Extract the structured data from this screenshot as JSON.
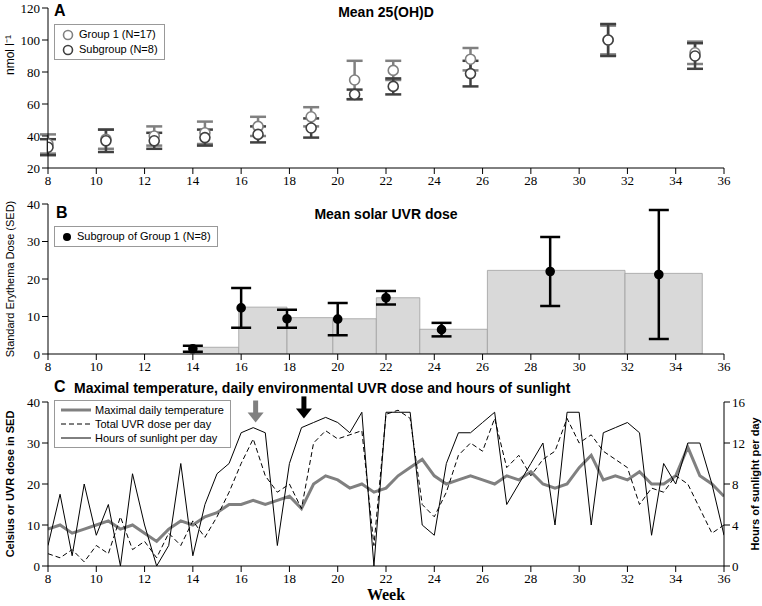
{
  "chart_data": [
    {
      "type": "scatter",
      "panel_label": "A",
      "title": "Mean 25(OH)D",
      "y_label": "nmol l⁻¹",
      "x": [
        8,
        10.4,
        12.4,
        14.5,
        16.7,
        18.9,
        20.7,
        22.3,
        25.5,
        31.2,
        34.8
      ],
      "xlim": [
        8,
        36
      ],
      "xticks": [
        8,
        10,
        12,
        14,
        16,
        18,
        20,
        22,
        24,
        26,
        28,
        30,
        32,
        34,
        36
      ],
      "ylim": [
        20,
        120
      ],
      "yticks": [
        20,
        40,
        60,
        80,
        100,
        120
      ],
      "legend": "upper left",
      "series": [
        {
          "name": "Group 1 (N=17)",
          "color": "#808080",
          "marker": "open_circle",
          "values": [
            35,
            38,
            40,
            42,
            46,
            52,
            75,
            81,
            88,
            100,
            92
          ],
          "error": [
            6,
            6,
            6,
            7,
            6,
            6,
            12,
            6,
            7,
            9,
            7
          ]
        },
        {
          "name": "Subgroup (N=8)",
          "color": "#404040",
          "marker": "open_circle",
          "values": [
            33,
            37,
            37,
            39,
            41,
            45,
            66,
            71,
            79,
            100,
            90
          ],
          "error": [
            5,
            7,
            5,
            5,
            5,
            6,
            3,
            5,
            8,
            10,
            8
          ]
        }
      ]
    },
    {
      "type": "histogram",
      "panel_label": "B",
      "title": "Mean solar UVR dose",
      "y_label": "Standard Erythema Dose (SED)",
      "bins": [
        13.9,
        15.9,
        17.9,
        19.8,
        21.6,
        23.4,
        26.2,
        31.9,
        35.1
      ],
      "values": [
        1.8,
        12.5,
        9.7,
        9.4,
        15,
        6.6,
        22.3,
        21.5
      ],
      "color": "#d9d9d9",
      "xlim": [
        8,
        36
      ],
      "xticks": [
        8,
        10,
        12,
        14,
        16,
        18,
        20,
        22,
        24,
        26,
        28,
        30,
        32,
        34,
        36
      ],
      "ylim": [
        0,
        40
      ],
      "yticks": [
        0,
        10,
        20,
        30,
        40
      ],
      "legend": "upper left",
      "series": [
        {
          "name": "Subgroup of Group 1 (N=8)",
          "type": "scatter",
          "color": "#000000",
          "marker": "filled_circle",
          "x": [
            14,
            16,
            17.9,
            20,
            22,
            24.3,
            28.8,
            33.3
          ],
          "values": [
            1.4,
            12.3,
            9.4,
            9.3,
            15,
            6.5,
            22,
            21.2
          ],
          "error": [
            0.8,
            5.3,
            2.4,
            4.3,
            1.8,
            1.8,
            9.2,
            17.2
          ]
        }
      ]
    },
    {
      "type": "line",
      "panel_label": "C",
      "title": "Maximal temperature, daily environmental UVR dose and hours of sunlight",
      "x_label": "Week",
      "y_label": "Celsius or UVR dose in SED",
      "y2_label": "Hours of sunlight per day",
      "x": [
        8,
        8.5,
        9,
        9.5,
        10,
        10.5,
        11,
        11.5,
        12,
        12.5,
        13,
        13.5,
        14,
        14.5,
        15,
        15.5,
        16,
        16.5,
        17,
        17.5,
        18,
        18.5,
        19,
        19.5,
        20,
        20.5,
        21,
        21.5,
        22,
        22.5,
        23,
        23.5,
        24,
        24.5,
        25,
        25.5,
        26,
        26.5,
        27,
        27.5,
        28,
        28.5,
        29,
        29.5,
        30,
        30.5,
        31,
        31.5,
        32,
        32.5,
        33,
        33.5,
        34,
        34.5,
        35,
        35.5,
        36
      ],
      "xlim": [
        8,
        36
      ],
      "xticks": [
        8,
        10,
        12,
        14,
        16,
        18,
        20,
        22,
        24,
        26,
        28,
        30,
        32,
        34,
        36
      ],
      "ylim": [
        0,
        40
      ],
      "yticks": [
        0,
        10,
        20,
        30,
        40
      ],
      "y2lim": [
        0,
        16
      ],
      "y2ticks": [
        0,
        4,
        8,
        12,
        16
      ],
      "legend": "upper left",
      "series": [
        {
          "name": "Maximal daily temperature",
          "color": "#808080",
          "line_style": "solid",
          "values": [
            9,
            10,
            8,
            9,
            10,
            11,
            9,
            10,
            8,
            6,
            9,
            11,
            10,
            12,
            13,
            15,
            15,
            16,
            15,
            16,
            17,
            14,
            20,
            22,
            21,
            19,
            20,
            18,
            19,
            22,
            24,
            26,
            22,
            20,
            21,
            22,
            21,
            20,
            22,
            21,
            23,
            20,
            19,
            20,
            24,
            27,
            21,
            22,
            21,
            23,
            20,
            20,
            22,
            29,
            22,
            20,
            17
          ]
        },
        {
          "name": "Total UVR dose per day",
          "color": "#000000",
          "line_style": "dashed",
          "values": [
            3,
            2,
            4,
            1,
            5,
            3,
            12,
            4,
            6,
            2,
            8,
            5,
            11,
            7,
            12,
            18,
            25,
            31,
            22,
            18,
            20,
            14,
            30,
            33,
            31,
            32,
            33,
            5,
            37,
            38,
            36,
            15,
            12,
            18,
            27,
            30,
            28,
            36,
            24,
            27,
            22,
            26,
            28,
            36,
            30,
            32,
            28,
            26,
            24,
            15,
            19,
            18,
            22,
            20,
            14,
            8,
            10
          ]
        },
        {
          "name": "Hours of sunlight per day",
          "color": "#000000",
          "line_style": "solid",
          "axis": "y2",
          "values": [
            2,
            7,
            1,
            8,
            3,
            6,
            0,
            9,
            4,
            0,
            2,
            10,
            1,
            6,
            9,
            10,
            13,
            13.5,
            13,
            2,
            10,
            13.5,
            14,
            14.5,
            14,
            13,
            15,
            0,
            15,
            15,
            15,
            4,
            3,
            10,
            13,
            13,
            14,
            15,
            6,
            8,
            10,
            12,
            4,
            15,
            15,
            4,
            13,
            13.5,
            14,
            13,
            3,
            10,
            8,
            12,
            12,
            8,
            3
          ]
        }
      ],
      "arrows": [
        {
          "x": 16.6,
          "y": 35,
          "color": "#808080"
        },
        {
          "x": 18.6,
          "y": 36,
          "color": "#000000"
        }
      ]
    }
  ]
}
